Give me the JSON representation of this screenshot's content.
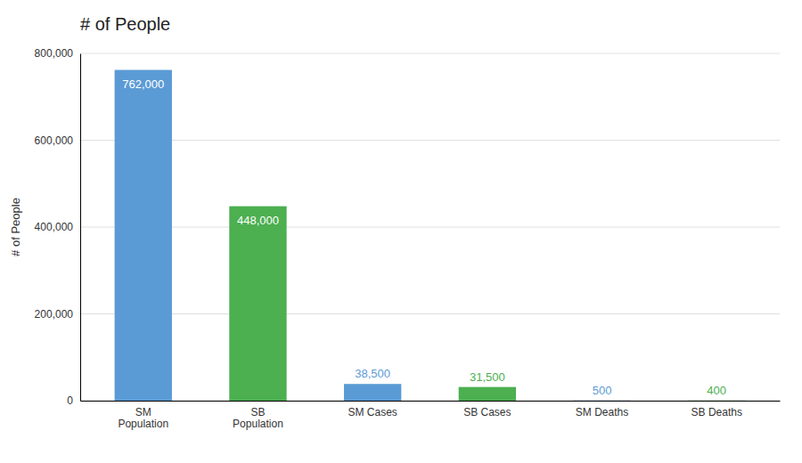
{
  "chart_data": {
    "type": "bar",
    "title": "# of People",
    "ylabel": "# of People",
    "categories": [
      "SM\nPopulation",
      "SB\nPopulation",
      "SM Cases",
      "SB Cases",
      "SM Deaths",
      "SB Deaths"
    ],
    "values": [
      762000,
      448000,
      38500,
      31500,
      500,
      400
    ],
    "value_labels": [
      "762,000",
      "448,000",
      "38,500",
      "31,500",
      "500",
      "400"
    ],
    "colors": [
      "#5B9BD5",
      "#4CAF50",
      "#5B9BD5",
      "#4CAF50",
      "#5B9BD5",
      "#4CAF50"
    ],
    "ylim": [
      0,
      800000
    ],
    "yticks": [
      {
        "value": 0,
        "label": "0"
      },
      {
        "value": 200000,
        "label": "200,000"
      },
      {
        "value": 400000,
        "label": "400,000"
      },
      {
        "value": 600000,
        "label": "600,000"
      },
      {
        "value": 800000,
        "label": "800,000"
      }
    ],
    "grid": true,
    "data_labels": true
  }
}
